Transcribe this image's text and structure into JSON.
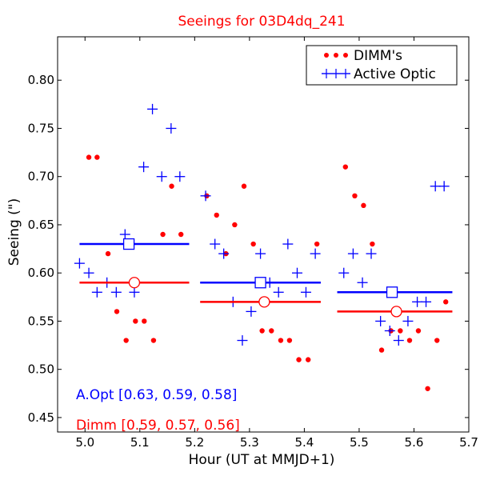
{
  "chart_data": {
    "type": "scatter",
    "title": "Seeings for 03D4dq_241",
    "xlabel": "Hour (UT at MMJD+1)",
    "ylabel": "Seeing (\")",
    "xlim": [
      4.95,
      5.7
    ],
    "ylim": [
      0.435,
      0.845
    ],
    "xticks": [
      5.0,
      5.1,
      5.2,
      5.3,
      5.4,
      5.5,
      5.6,
      5.7
    ],
    "xtick_labels": [
      "5.0",
      "5.1",
      "5.2",
      "5.3",
      "5.4",
      "5.5",
      "5.6",
      "5.7"
    ],
    "yticks": [
      0.45,
      0.5,
      0.55,
      0.6,
      0.65,
      0.7,
      0.75,
      0.8
    ],
    "ytick_labels": [
      "0.45",
      "0.50",
      "0.55",
      "0.60",
      "0.65",
      "0.70",
      "0.75",
      "0.80"
    ],
    "grid": false,
    "legend": {
      "position": "top-right",
      "entries": [
        {
          "label": "DIMM's",
          "marker": "dot",
          "color": "#ff0000"
        },
        {
          "label": "Active Optic",
          "marker": "plus",
          "color": "#0000ff"
        }
      ]
    },
    "series": [
      {
        "name": "DIMM's",
        "marker": "dot",
        "color": "#ff0000",
        "points": [
          {
            "x": 5.007,
            "y": 0.72
          },
          {
            "x": 5.022,
            "y": 0.72
          },
          {
            "x": 5.042,
            "y": 0.62
          },
          {
            "x": 5.058,
            "y": 0.56
          },
          {
            "x": 5.075,
            "y": 0.53
          },
          {
            "x": 5.092,
            "y": 0.55
          },
          {
            "x": 5.108,
            "y": 0.55
          },
          {
            "x": 5.125,
            "y": 0.53
          },
          {
            "x": 5.142,
            "y": 0.64
          },
          {
            "x": 5.158,
            "y": 0.69
          },
          {
            "x": 5.175,
            "y": 0.64
          },
          {
            "x": 5.222,
            "y": 0.68
          },
          {
            "x": 5.24,
            "y": 0.66
          },
          {
            "x": 5.257,
            "y": 0.62
          },
          {
            "x": 5.273,
            "y": 0.65
          },
          {
            "x": 5.29,
            "y": 0.69
          },
          {
            "x": 5.307,
            "y": 0.63
          },
          {
            "x": 5.323,
            "y": 0.54
          },
          {
            "x": 5.34,
            "y": 0.54
          },
          {
            "x": 5.357,
            "y": 0.53
          },
          {
            "x": 5.373,
            "y": 0.53
          },
          {
            "x": 5.39,
            "y": 0.51
          },
          {
            "x": 5.407,
            "y": 0.51
          },
          {
            "x": 5.423,
            "y": 0.63
          },
          {
            "x": 5.475,
            "y": 0.71
          },
          {
            "x": 5.492,
            "y": 0.68
          },
          {
            "x": 5.508,
            "y": 0.67
          },
          {
            "x": 5.524,
            "y": 0.63
          },
          {
            "x": 5.541,
            "y": 0.52
          },
          {
            "x": 5.558,
            "y": 0.54
          },
          {
            "x": 5.575,
            "y": 0.54
          },
          {
            "x": 5.592,
            "y": 0.53
          },
          {
            "x": 5.608,
            "y": 0.54
          },
          {
            "x": 5.625,
            "y": 0.48
          },
          {
            "x": 5.642,
            "y": 0.53
          },
          {
            "x": 5.658,
            "y": 0.57
          }
        ]
      },
      {
        "name": "Active Optic",
        "marker": "plus",
        "color": "#0000ff",
        "points": [
          {
            "x": 4.99,
            "y": 0.61
          },
          {
            "x": 5.007,
            "y": 0.6
          },
          {
            "x": 5.022,
            "y": 0.58
          },
          {
            "x": 5.04,
            "y": 0.59
          },
          {
            "x": 5.057,
            "y": 0.58
          },
          {
            "x": 5.073,
            "y": 0.64
          },
          {
            "x": 5.09,
            "y": 0.58
          },
          {
            "x": 5.107,
            "y": 0.71
          },
          {
            "x": 5.123,
            "y": 0.77
          },
          {
            "x": 5.14,
            "y": 0.7
          },
          {
            "x": 5.157,
            "y": 0.75
          },
          {
            "x": 5.173,
            "y": 0.7
          },
          {
            "x": 5.22,
            "y": 0.68
          },
          {
            "x": 5.237,
            "y": 0.63
          },
          {
            "x": 5.253,
            "y": 0.62
          },
          {
            "x": 5.27,
            "y": 0.57
          },
          {
            "x": 5.287,
            "y": 0.53
          },
          {
            "x": 5.303,
            "y": 0.56
          },
          {
            "x": 5.32,
            "y": 0.62
          },
          {
            "x": 5.337,
            "y": 0.59
          },
          {
            "x": 5.353,
            "y": 0.58
          },
          {
            "x": 5.37,
            "y": 0.63
          },
          {
            "x": 5.387,
            "y": 0.6
          },
          {
            "x": 5.403,
            "y": 0.58
          },
          {
            "x": 5.42,
            "y": 0.62
          },
          {
            "x": 5.472,
            "y": 0.6
          },
          {
            "x": 5.489,
            "y": 0.62
          },
          {
            "x": 5.506,
            "y": 0.59
          },
          {
            "x": 5.522,
            "y": 0.62
          },
          {
            "x": 5.539,
            "y": 0.55
          },
          {
            "x": 5.556,
            "y": 0.54
          },
          {
            "x": 5.572,
            "y": 0.53
          },
          {
            "x": 5.589,
            "y": 0.55
          },
          {
            "x": 5.606,
            "y": 0.57
          },
          {
            "x": 5.622,
            "y": 0.57
          },
          {
            "x": 5.639,
            "y": 0.69
          },
          {
            "x": 5.655,
            "y": 0.69
          }
        ]
      }
    ],
    "mean_lines": [
      {
        "series": "Active Optic",
        "color": "#0000ff",
        "x0": 4.99,
        "x1": 5.19,
        "y": 0.63,
        "marker_x": 5.08
      },
      {
        "series": "DIMM's",
        "color": "#ff0000",
        "x0": 4.99,
        "x1": 5.19,
        "y": 0.59,
        "marker_x": 5.09
      },
      {
        "series": "Active Optic",
        "color": "#0000ff",
        "x0": 5.21,
        "x1": 5.43,
        "y": 0.59,
        "marker_x": 5.32
      },
      {
        "series": "DIMM's",
        "color": "#ff0000",
        "x0": 5.21,
        "x1": 5.43,
        "y": 0.57,
        "marker_x": 5.327
      },
      {
        "series": "Active Optic",
        "color": "#0000ff",
        "x0": 5.46,
        "x1": 5.67,
        "y": 0.58,
        "marker_x": 5.56
      },
      {
        "series": "DIMM's",
        "color": "#ff0000",
        "x0": 5.46,
        "x1": 5.67,
        "y": 0.56,
        "marker_x": 5.568
      }
    ],
    "annotations": [
      {
        "text": "A.Opt [0.63, 0.59, 0.58]",
        "color": "#0000ff"
      },
      {
        "text": "Dimm [0.59, 0.57, 0.56]",
        "color": "#ff0000"
      }
    ]
  }
}
